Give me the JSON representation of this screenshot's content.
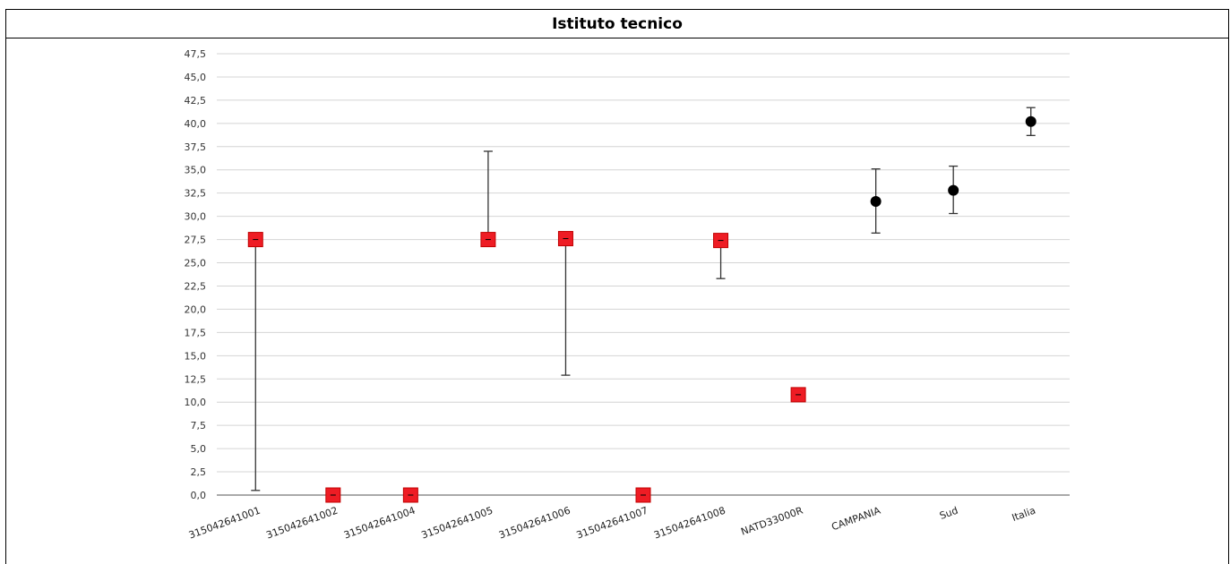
{
  "table": {
    "header": "Istituto tecnico"
  },
  "chart_data": {
    "type": "scatter",
    "title": "",
    "xlabel": "",
    "ylabel": "",
    "ylim": [
      0,
      47.5
    ],
    "ytick_step": 2.5,
    "ytick_labels": [
      "0,0",
      "2,5",
      "5,0",
      "7,5",
      "10,0",
      "12,5",
      "15,0",
      "17,5",
      "20,0",
      "22,5",
      "25,0",
      "27,5",
      "30,0",
      "32,5",
      "35,0",
      "37,5",
      "40,0",
      "42,5",
      "45,0",
      "47,5"
    ],
    "grid": true,
    "categories": [
      "315042641001",
      "315042641002",
      "315042641004",
      "315042641005",
      "315042641006",
      "315042641007",
      "315042641008",
      "NATD33000R",
      "CAMPANIA",
      "Sud",
      "Italia"
    ],
    "points": [
      {
        "category": "315042641001",
        "value": 27.5,
        "err_low": 0.5,
        "err_high": 27.5,
        "marker": "square"
      },
      {
        "category": "315042641002",
        "value": 0.0,
        "err_low": 0.0,
        "err_high": 0.0,
        "marker": "square"
      },
      {
        "category": "315042641004",
        "value": 0.0,
        "err_low": 0.0,
        "err_high": 0.0,
        "marker": "square"
      },
      {
        "category": "315042641005",
        "value": 27.5,
        "err_low": 27.5,
        "err_high": 37.0,
        "marker": "square"
      },
      {
        "category": "315042641006",
        "value": 27.6,
        "err_low": 12.9,
        "err_high": 27.6,
        "marker": "square"
      },
      {
        "category": "315042641007",
        "value": 0.0,
        "err_low": 0.0,
        "err_high": 0.0,
        "marker": "square"
      },
      {
        "category": "315042641008",
        "value": 27.4,
        "err_low": 23.3,
        "err_high": 27.4,
        "marker": "square"
      },
      {
        "category": "NATD33000R",
        "value": 10.8,
        "err_low": 10.8,
        "err_high": 10.8,
        "marker": "square"
      },
      {
        "category": "CAMPANIA",
        "value": 31.6,
        "err_low": 28.2,
        "err_high": 35.1,
        "marker": "circle"
      },
      {
        "category": "Sud",
        "value": 32.8,
        "err_low": 30.3,
        "err_high": 35.4,
        "marker": "circle"
      },
      {
        "category": "Italia",
        "value": 40.2,
        "err_low": 38.7,
        "err_high": 41.7,
        "marker": "circle"
      }
    ],
    "colors": {
      "square_fill": "#ee1c24",
      "square_stroke": "#c00000",
      "circle_fill": "#000000",
      "grid": "#d4d4d4",
      "axis": "#777777",
      "errorbar": "#333333"
    }
  }
}
